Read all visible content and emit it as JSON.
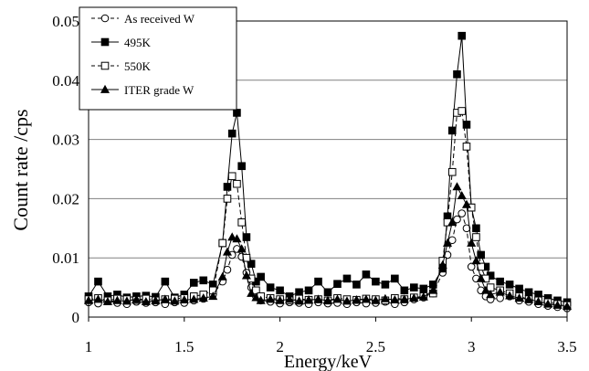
{
  "chart_data": {
    "type": "line",
    "xlabel": "Energy/keV",
    "ylabel": "Count rate /cps",
    "xlim": [
      1,
      3.5
    ],
    "ylim": [
      0,
      0.05
    ],
    "x_ticks": [
      "1",
      "1.5",
      "2",
      "2.5",
      "3",
      "3.5"
    ],
    "y_ticks": [
      "0",
      "0.01",
      "0.02",
      "0.03",
      "0.04",
      "0.05"
    ],
    "grid": "horizontal",
    "legend_position": "top-left",
    "series": [
      {
        "name": "As received W",
        "marker": "open-circle",
        "line": "dashed",
        "x": [
          1.0,
          1.05,
          1.1,
          1.15,
          1.2,
          1.25,
          1.3,
          1.35,
          1.4,
          1.45,
          1.5,
          1.55,
          1.6,
          1.65,
          1.7,
          1.725,
          1.75,
          1.775,
          1.8,
          1.825,
          1.85,
          1.875,
          1.9,
          1.95,
          2.0,
          2.05,
          2.1,
          2.15,
          2.2,
          2.25,
          2.3,
          2.35,
          2.4,
          2.45,
          2.5,
          2.55,
          2.6,
          2.65,
          2.7,
          2.75,
          2.8,
          2.85,
          2.875,
          2.9,
          2.925,
          2.95,
          2.975,
          3.0,
          3.025,
          3.05,
          3.075,
          3.1,
          3.15,
          3.2,
          3.25,
          3.3,
          3.35,
          3.4,
          3.45,
          3.5
        ],
        "y": [
          0.0025,
          0.0023,
          0.0027,
          0.0024,
          0.0022,
          0.0026,
          0.0024,
          0.0025,
          0.0022,
          0.0025,
          0.0024,
          0.0028,
          0.0031,
          0.0038,
          0.006,
          0.008,
          0.0105,
          0.0115,
          0.0102,
          0.0075,
          0.005,
          0.0035,
          0.0028,
          0.0026,
          0.0023,
          0.0025,
          0.0024,
          0.0022,
          0.0025,
          0.0023,
          0.0024,
          0.0022,
          0.0025,
          0.0023,
          0.0024,
          0.0026,
          0.0022,
          0.0025,
          0.003,
          0.0033,
          0.004,
          0.0075,
          0.0105,
          0.013,
          0.0165,
          0.0175,
          0.015,
          0.0085,
          0.0065,
          0.0045,
          0.0035,
          0.003,
          0.0032,
          0.0035,
          0.0028,
          0.0026,
          0.0022,
          0.0019,
          0.0017,
          0.0015
        ]
      },
      {
        "name": "495K",
        "marker": "filled-square",
        "line": "solid",
        "x": [
          1.0,
          1.05,
          1.1,
          1.15,
          1.2,
          1.25,
          1.3,
          1.35,
          1.4,
          1.45,
          1.5,
          1.55,
          1.6,
          1.65,
          1.7,
          1.725,
          1.75,
          1.775,
          1.8,
          1.825,
          1.85,
          1.875,
          1.9,
          1.95,
          2.0,
          2.05,
          2.1,
          2.15,
          2.2,
          2.25,
          2.3,
          2.35,
          2.4,
          2.45,
          2.5,
          2.55,
          2.6,
          2.65,
          2.7,
          2.75,
          2.8,
          2.85,
          2.875,
          2.9,
          2.925,
          2.95,
          2.975,
          3.0,
          3.025,
          3.05,
          3.075,
          3.1,
          3.15,
          3.2,
          3.25,
          3.3,
          3.35,
          3.4,
          3.45,
          3.5
        ],
        "y": [
          0.0035,
          0.006,
          0.0035,
          0.0038,
          0.0033,
          0.0035,
          0.0036,
          0.0034,
          0.006,
          0.0033,
          0.0038,
          0.0058,
          0.0062,
          0.0055,
          0.0125,
          0.022,
          0.031,
          0.0345,
          0.0255,
          0.0135,
          0.009,
          0.006,
          0.0068,
          0.005,
          0.0045,
          0.0035,
          0.0042,
          0.0045,
          0.006,
          0.0042,
          0.0056,
          0.0065,
          0.0055,
          0.0072,
          0.006,
          0.0055,
          0.0065,
          0.0045,
          0.005,
          0.0048,
          0.0055,
          0.0082,
          0.017,
          0.0315,
          0.041,
          0.0475,
          0.0325,
          0.0185,
          0.015,
          0.0105,
          0.0085,
          0.007,
          0.006,
          0.0055,
          0.0048,
          0.0042,
          0.0038,
          0.0032,
          0.0028,
          0.0025
        ]
      },
      {
        "name": "550K",
        "marker": "open-square",
        "line": "dashed",
        "x": [
          1.0,
          1.05,
          1.1,
          1.15,
          1.2,
          1.25,
          1.3,
          1.35,
          1.4,
          1.45,
          1.5,
          1.55,
          1.6,
          1.65,
          1.7,
          1.725,
          1.75,
          1.775,
          1.8,
          1.825,
          1.85,
          1.875,
          1.9,
          1.95,
          2.0,
          2.05,
          2.1,
          2.15,
          2.2,
          2.25,
          2.3,
          2.35,
          2.4,
          2.45,
          2.5,
          2.55,
          2.6,
          2.65,
          2.7,
          2.75,
          2.8,
          2.85,
          2.875,
          2.9,
          2.925,
          2.95,
          2.975,
          3.0,
          3.025,
          3.05,
          3.075,
          3.1,
          3.15,
          3.2,
          3.25,
          3.3,
          3.35,
          3.4,
          3.45,
          3.5
        ],
        "y": [
          0.003,
          0.0032,
          0.0028,
          0.0031,
          0.003,
          0.0029,
          0.0031,
          0.0028,
          0.003,
          0.0031,
          0.0032,
          0.0035,
          0.0038,
          0.0045,
          0.0125,
          0.02,
          0.0238,
          0.0225,
          0.016,
          0.01,
          0.0065,
          0.0045,
          0.0035,
          0.0032,
          0.003,
          0.0028,
          0.0031,
          0.0029,
          0.003,
          0.0028,
          0.0032,
          0.003,
          0.0029,
          0.0031,
          0.003,
          0.0028,
          0.0032,
          0.003,
          0.0033,
          0.0035,
          0.004,
          0.0095,
          0.016,
          0.0245,
          0.0345,
          0.0348,
          0.0288,
          0.0185,
          0.0135,
          0.0085,
          0.0065,
          0.005,
          0.0045,
          0.004,
          0.0035,
          0.003,
          0.0028,
          0.0025,
          0.0022,
          0.002
        ]
      },
      {
        "name": "ITER grade W",
        "marker": "filled-triangle",
        "line": "solid",
        "x": [
          1.0,
          1.05,
          1.1,
          1.15,
          1.2,
          1.25,
          1.3,
          1.35,
          1.4,
          1.45,
          1.5,
          1.55,
          1.6,
          1.65,
          1.7,
          1.725,
          1.75,
          1.775,
          1.8,
          1.825,
          1.85,
          1.875,
          1.9,
          1.95,
          2.0,
          2.05,
          2.1,
          2.15,
          2.2,
          2.25,
          2.3,
          2.35,
          2.4,
          2.45,
          2.5,
          2.55,
          2.6,
          2.65,
          2.7,
          2.75,
          2.8,
          2.85,
          2.875,
          2.9,
          2.925,
          2.95,
          2.975,
          3.0,
          3.025,
          3.05,
          3.075,
          3.1,
          3.15,
          3.2,
          3.25,
          3.3,
          3.35,
          3.4,
          3.45,
          3.5
        ],
        "y": [
          0.0028,
          0.003,
          0.0026,
          0.0028,
          0.0027,
          0.003,
          0.0026,
          0.0028,
          0.003,
          0.0027,
          0.0029,
          0.003,
          0.0032,
          0.0035,
          0.0068,
          0.011,
          0.0135,
          0.0132,
          0.0115,
          0.007,
          0.004,
          0.0033,
          0.0028,
          0.003,
          0.0028,
          0.003,
          0.0027,
          0.0029,
          0.003,
          0.0028,
          0.003,
          0.0027,
          0.0029,
          0.003,
          0.0028,
          0.0031,
          0.0029,
          0.003,
          0.0032,
          0.0034,
          0.0045,
          0.0088,
          0.0125,
          0.016,
          0.022,
          0.0205,
          0.019,
          0.0125,
          0.0095,
          0.0065,
          0.0045,
          0.0038,
          0.0042,
          0.0036,
          0.0032,
          0.003,
          0.0026,
          0.0022,
          0.002,
          0.0018
        ]
      }
    ]
  }
}
